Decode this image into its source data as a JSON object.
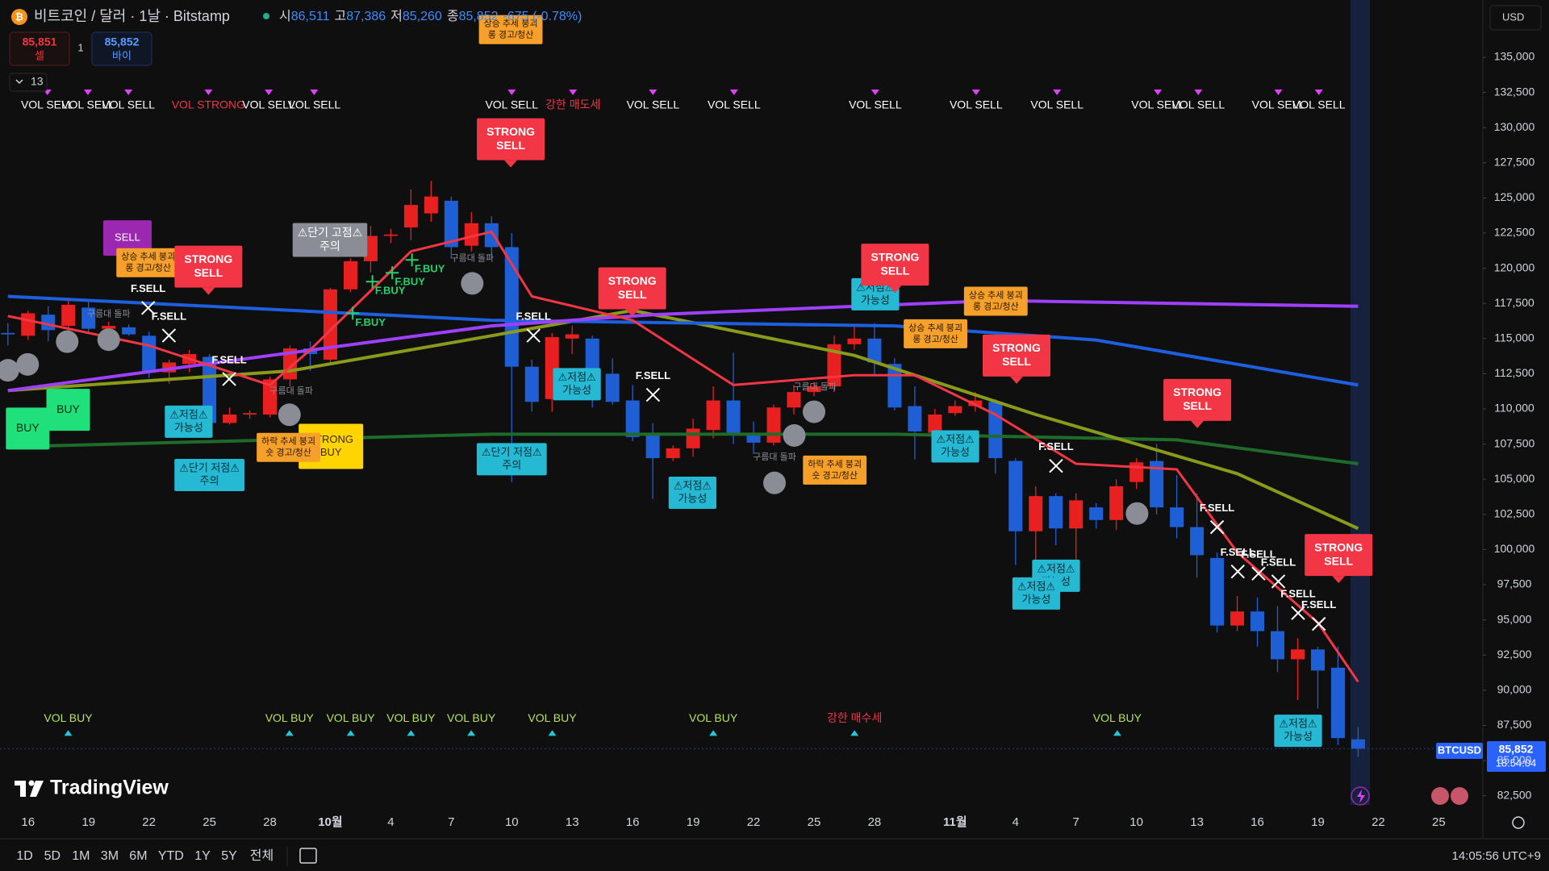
{
  "header": {
    "symbol": "비트코인 / 달러 · 1날 · Bitstamp",
    "ohlc": [
      [
        "시",
        "86,511"
      ],
      [
        "고",
        "87,386"
      ],
      [
        "저",
        "85,260"
      ],
      [
        "종",
        "85,852"
      ]
    ],
    "change": "-675 (-0.78%)"
  },
  "trade": {
    "sell_price": "85,851",
    "sell_label": "셀",
    "spread": "1",
    "buy_price": "85,852",
    "buy_label": "바이"
  },
  "indicators_count": "13",
  "currency": "USD",
  "logo": "TradingView",
  "price_tag": {
    "symbol": "BTCUSD",
    "price": "85,852",
    "countdown": "18:54:04"
  },
  "toolbar": {
    "ranges": [
      "1D",
      "5D",
      "1M",
      "3M",
      "6M",
      "YTD",
      "1Y",
      "5Y",
      "전체"
    ],
    "clock": "14:05:56 UTC+9"
  },
  "chart_data": {
    "type": "candlestick",
    "categories": [
      null,
      "16",
      null,
      null,
      "19",
      null,
      null,
      "22",
      null,
      null,
      "25",
      null,
      null,
      "28",
      null,
      null,
      "10월",
      null,
      null,
      "4",
      null,
      null,
      "7",
      null,
      null,
      "10",
      null,
      null,
      "13",
      null,
      null,
      "16",
      null,
      null,
      "19",
      null,
      null,
      "22",
      null,
      null,
      "25",
      null,
      null,
      "28",
      null,
      null,
      null,
      "11월",
      null,
      null,
      "4",
      null,
      null,
      "7",
      null,
      null,
      "10",
      null,
      null,
      "13",
      null,
      null,
      "16",
      null,
      null,
      "19",
      null,
      null,
      "22",
      null,
      null,
      "25"
    ],
    "open": [
      115400,
      115200,
      116700,
      115900,
      117200,
      115700,
      115800,
      115200,
      112600,
      113200,
      113700,
      109000,
      109600,
      109600,
      112100,
      114300,
      113500,
      118500,
      120500,
      122300,
      122900,
      123900,
      124800,
      121600,
      123200,
      121500,
      113000,
      110700,
      115000,
      115000,
      112500,
      110600,
      108300,
      106500,
      107200,
      108500,
      110600,
      108300,
      107600,
      110100,
      111200,
      111600,
      114600,
      115000,
      113200,
      110200,
      108300,
      109700,
      110200,
      110500,
      106300,
      101300,
      103800,
      101500,
      103000,
      102100,
      104800,
      106300,
      103000,
      101600,
      99400,
      94600,
      95600,
      94200,
      92200,
      92900,
      91600,
      86511,
      null,
      null,
      null,
      null
    ],
    "high": [
      116100,
      117000,
      117300,
      117900,
      117600,
      116200,
      116000,
      115500,
      113500,
      114200,
      113900,
      110100,
      109900,
      112300,
      114500,
      114800,
      118600,
      120700,
      123000,
      122800,
      125600,
      126200,
      125100,
      124000,
      123700,
      122500,
      113500,
      115400,
      115900,
      115200,
      113600,
      111700,
      109000,
      107400,
      109300,
      111600,
      114000,
      109100,
      110300,
      111700,
      111900,
      115200,
      116000,
      116100,
      113600,
      111600,
      110000,
      110600,
      111200,
      110700,
      106500,
      104500,
      104000,
      104000,
      103300,
      105000,
      106500,
      107500,
      105300,
      104000,
      99800,
      96700,
      96600,
      96000,
      93700,
      93100,
      93100,
      87386,
      null,
      null,
      null,
      null
    ],
    "low": [
      114500,
      114900,
      114800,
      115500,
      115500,
      115500,
      115200,
      112200,
      111800,
      112600,
      108700,
      108900,
      109300,
      109400,
      111600,
      112700,
      113300,
      118300,
      119700,
      121800,
      122000,
      123300,
      120700,
      121200,
      120700,
      104800,
      109800,
      109800,
      113900,
      110100,
      110300,
      107700,
      103600,
      106300,
      106600,
      107900,
      107500,
      106800,
      107400,
      109600,
      110900,
      111200,
      114200,
      112300,
      109900,
      106400,
      108000,
      109500,
      109800,
      105400,
      98900,
      98900,
      100300,
      99300,
      101500,
      101400,
      104300,
      102500,
      100800,
      98000,
      94100,
      94200,
      93100,
      91300,
      89300,
      88700,
      86100,
      85260,
      null,
      null,
      null,
      null
    ],
    "close": [
      115300,
      116800,
      115600,
      117400,
      115700,
      115900,
      115300,
      112600,
      113300,
      113900,
      109000,
      109600,
      109700,
      112100,
      114300,
      113900,
      118500,
      120500,
      122300,
      122400,
      124500,
      125100,
      121500,
      123200,
      121500,
      113000,
      110500,
      115100,
      115300,
      111500,
      110500,
      108000,
      106500,
      107200,
      108600,
      110600,
      108200,
      107600,
      110100,
      111200,
      111600,
      114600,
      115000,
      113300,
      110100,
      108400,
      109600,
      110200,
      110600,
      106500,
      101300,
      103800,
      101500,
      103500,
      102100,
      104500,
      106200,
      103000,
      101600,
      99600,
      94600,
      95600,
      94200,
      92200,
      92900,
      91400,
      86600,
      85852,
      null,
      null,
      null,
      null
    ],
    "up_color": "#e8201f",
    "down_color": "#1f5fd6",
    "ylim": [
      81850,
      139070
    ],
    "yticks": [
      {
        "value": 82500,
        "label": "82,500"
      },
      {
        "value": 85000,
        "label": "85,000"
      },
      {
        "value": 87500,
        "label": "87,500"
      },
      {
        "value": 90000,
        "label": "90,000"
      },
      {
        "value": 92500,
        "label": "92,500"
      },
      {
        "value": 95000,
        "label": "95,000"
      },
      {
        "value": 97500,
        "label": "97,500"
      },
      {
        "value": 100000,
        "label": "100,000"
      },
      {
        "value": 102500,
        "label": "102,500"
      },
      {
        "value": 105000,
        "label": "105,000"
      },
      {
        "value": 107500,
        "label": "107,500"
      },
      {
        "value": 110000,
        "label": "110,000"
      },
      {
        "value": 112500,
        "label": "112,500"
      },
      {
        "value": 115000,
        "label": "115,000"
      },
      {
        "value": 117500,
        "label": "117,500"
      },
      {
        "value": 120000,
        "label": "120,000"
      },
      {
        "value": 122500,
        "label": "122,500"
      },
      {
        "value": 125000,
        "label": "125,000"
      },
      {
        "value": 127500,
        "label": "127,500"
      },
      {
        "value": 130000,
        "label": "130,000"
      },
      {
        "value": 132500,
        "label": "132,500"
      },
      {
        "value": 135000,
        "label": "135,000"
      }
    ],
    "grid": false,
    "overlays": [
      {
        "color": "#1f6b2a",
        "x": [
          0,
          24,
          44,
          58,
          67
        ],
        "values": [
          107300,
          108200,
          108200,
          107800,
          106100
        ]
      },
      {
        "color": "#8a9a1a",
        "x": [
          0,
          14,
          24,
          31,
          42,
          51,
          61,
          67
        ],
        "values": [
          111300,
          112700,
          115200,
          117000,
          113800,
          109600,
          105400,
          101500
        ]
      },
      {
        "color": "#1e5fe0",
        "x": [
          0,
          24,
          44,
          54,
          67
        ],
        "values": [
          118000,
          116300,
          115900,
          114900,
          111700
        ]
      },
      {
        "color": "#a040ff",
        "x": [
          0,
          24,
          32,
          49,
          67
        ],
        "values": [
          111300,
          115900,
          116700,
          117700,
          117300
        ]
      },
      {
        "color": "#f23645",
        "x": [
          0,
          7,
          13,
          15,
          20,
          24,
          26,
          31,
          36,
          42,
          45,
          49,
          53,
          58,
          61,
          65,
          67
        ],
        "values": [
          116600,
          114500,
          111700,
          114200,
          121200,
          122600,
          118000,
          116300,
          111700,
          112400,
          112400,
          109600,
          106100,
          105700,
          99800,
          94800,
          90600
        ]
      }
    ],
    "annotations": [
      {
        "lines": [
          "VOL SELL"
        ],
        "style": "vol-sell"
      },
      {
        "lines": [
          "VOL SELL"
        ],
        "style": "vol-sell"
      },
      {
        "lines": [
          "VOL SELL"
        ],
        "style": "vol-sell"
      },
      {
        "lines": [
          "VOL STRONG"
        ],
        "style": "vol-strong"
      },
      {
        "lines": [
          "VOL SELL"
        ],
        "style": "vol-sell"
      },
      {
        "lines": [
          "VOL SELL"
        ],
        "style": "vol-sell"
      },
      {
        "lines": [
          "VOL SELL"
        ],
        "style": "vol-sell"
      },
      {
        "lines": [
          "강한 매도세"
        ],
        "style": "vol-strong"
      },
      {
        "lines": [
          "VOL SELL"
        ],
        "style": "vol-sell"
      },
      {
        "lines": [
          "VOL SELL"
        ],
        "style": "vol-sell"
      },
      {
        "lines": [
          "VOL SELL"
        ],
        "style": "vol-sell"
      },
      {
        "lines": [
          "VOL SELL"
        ],
        "style": "vol-sell"
      },
      {
        "lines": [
          "VOL SELL"
        ],
        "style": "vol-sell"
      },
      {
        "lines": [
          "VOL SELL"
        ],
        "style": "vol-sell"
      },
      {
        "lines": [
          "VOL SELL"
        ],
        "style": "vol-sell"
      },
      {
        "lines": [
          "VOL SELL"
        ],
        "style": "vol-sell"
      },
      {
        "lines": [
          "VOL SELL"
        ],
        "style": "vol-sell"
      },
      {
        "lines": [
          "VOL BUY"
        ],
        "style": "vol-buy"
      },
      {
        "lines": [
          "VOL BUY"
        ],
        "style": "vol-buy"
      },
      {
        "lines": [
          "VOL BUY"
        ],
        "style": "vol-buy"
      },
      {
        "lines": [
          "VOL BUY"
        ],
        "style": "vol-buy"
      },
      {
        "lines": [
          "VOL BUY"
        ],
        "style": "vol-buy"
      },
      {
        "lines": [
          "VOL BUY"
        ],
        "style": "vol-buy"
      },
      {
        "lines": [
          "VOL BUY"
        ],
        "style": "vol-buy"
      },
      {
        "lines": [
          "강한 매수세"
        ],
        "style": "vol-buy-strong"
      },
      {
        "lines": [
          "VOL BUY"
        ],
        "style": "vol-buy"
      },
      {
        "lines": [
          "구름대 돌파"
        ],
        "style": "cloud"
      },
      {
        "lines": [
          "구름대 돌파"
        ],
        "style": "cloud"
      },
      {
        "lines": [
          "구름대 돌파"
        ],
        "style": "cloud"
      },
      {
        "lines": [
          "구름대 돌파"
        ],
        "style": "cloud"
      },
      {
        "lines": [
          "구름대 돌파"
        ],
        "style": "cloud"
      },
      {
        "lines": [
          "F.SELL"
        ],
        "style": "f-sell"
      },
      {
        "lines": [
          "F.SELL"
        ],
        "style": "f-sell"
      },
      {
        "lines": [
          "F.SELL"
        ],
        "style": "f-sell"
      },
      {
        "lines": [
          "F.SELL"
        ],
        "style": "f-sell"
      },
      {
        "lines": [
          "F.SELL"
        ],
        "style": "f-sell"
      },
      {
        "lines": [
          "F.SELL"
        ],
        "style": "f-sell"
      },
      {
        "lines": [
          "F.SELL"
        ],
        "style": "f-sell"
      },
      {
        "lines": [
          "F.SELL"
        ],
        "style": "f-sell"
      },
      {
        "lines": [
          "F.SELL"
        ],
        "style": "f-sell"
      },
      {
        "lines": [
          "F.SELL"
        ],
        "style": "f-sell"
      },
      {
        "lines": [
          "F.SELL"
        ],
        "style": "f-sell"
      },
      {
        "lines": [
          "F.SELL"
        ],
        "style": "f-sell"
      },
      {
        "lines": [
          "F.BUY"
        ],
        "style": "f-buy"
      },
      {
        "lines": [
          "F.BUY"
        ],
        "style": "f-buy"
      },
      {
        "lines": [
          "F.BUY"
        ],
        "style": "f-buy"
      },
      {
        "lines": [
          "F.BUY"
        ],
        "style": "f-buy"
      },
      {
        "lines": [
          "BUY"
        ],
        "style": "buy"
      },
      {
        "lines": [
          "BUY"
        ],
        "style": "buy"
      },
      {
        "lines": [
          "SELL"
        ],
        "style": "sell"
      },
      {
        "lines": [
          "STRONG",
          "BUY"
        ],
        "style": "strong-buy"
      },
      {
        "lines": [
          "⚠저점⚠",
          "가능성"
        ],
        "style": "warn-cyan"
      },
      {
        "lines": [
          "⚠저점⚠",
          "가능성"
        ],
        "style": "warn-cyan"
      },
      {
        "lines": [
          "⚠저점⚠",
          "가능성"
        ],
        "style": "warn-cyan"
      },
      {
        "lines": [
          "⚠저점⚠",
          "가능성"
        ],
        "style": "warn-cyan"
      },
      {
        "lines": [
          "⚠저점⚠",
          "가능성"
        ],
        "style": "warn-cyan"
      },
      {
        "lines": [
          "⚠저점⚠",
          "가능성"
        ],
        "style": "warn-cyan"
      },
      {
        "lines": [
          "⚠저점⚠",
          "가능성"
        ],
        "style": "warn-cyan"
      },
      {
        "lines": [
          "⚠저점⚠",
          "가능성"
        ],
        "style": "warn-cyan"
      },
      {
        "lines": [
          "⚠단기 저점⚠",
          "주의"
        ],
        "style": "warn-cyan"
      },
      {
        "lines": [
          "⚠단기 저점⚠",
          "주의"
        ],
        "style": "warn-cyan"
      },
      {
        "lines": [
          "⚠단기 고점⚠",
          "주의"
        ],
        "style": "warn-gray"
      },
      {
        "lines": [
          "상승 추세 붕괴",
          "롱 경고/청산"
        ],
        "style": "warn-orange"
      },
      {
        "lines": [
          "상승 추세 붕괴",
          "롱 경고/청산"
        ],
        "style": "warn-orange"
      },
      {
        "lines": [
          "상승 추세 붕괴",
          "롱 경고/청산"
        ],
        "style": "warn-orange"
      },
      {
        "lines": [
          "상승 추세 붕괴",
          "롱 경고/청산"
        ],
        "style": "warn-orange"
      },
      {
        "lines": [
          "하락 추세 붕괴",
          "숏 경고/청산"
        ],
        "style": "warn-orange"
      },
      {
        "lines": [
          "하락 추세 붕괴",
          "숏 경고/청산"
        ],
        "style": "warn-orange"
      },
      {
        "lines": [
          "STRONG",
          "SELL"
        ],
        "style": "strong-sell"
      },
      {
        "lines": [
          "STRONG",
          "SELL"
        ],
        "style": "strong-sell"
      },
      {
        "lines": [
          "STRONG",
          "SELL"
        ],
        "style": "strong-sell"
      },
      {
        "lines": [
          "STRONG",
          "SELL"
        ],
        "style": "strong-sell"
      },
      {
        "lines": [
          "STRONG",
          "SELL"
        ],
        "style": "strong-sell"
      },
      {
        "lines": [
          "STRONG",
          "SELL"
        ],
        "style": "strong-sell"
      },
      {
        "lines": [
          "STRONG",
          "SELL"
        ],
        "style": "strong-sell"
      }
    ]
  }
}
